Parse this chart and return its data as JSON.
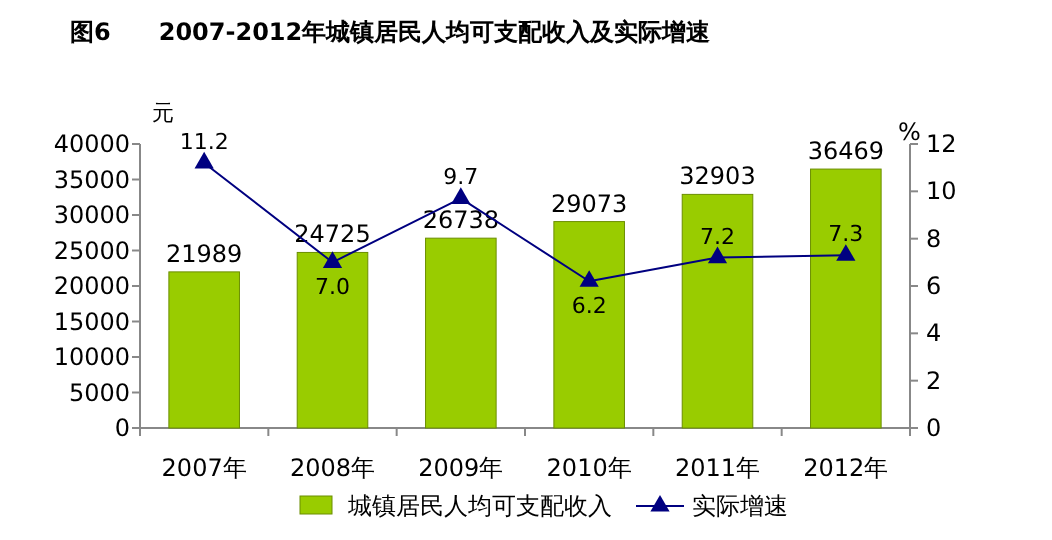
{
  "chart_data": {
    "type": "bar",
    "title": "图6　　2007-2012年城镇居民人均可支配收入及实际增速",
    "ylabel": "元",
    "y2label": "%",
    "categories": [
      "2007年",
      "2008年",
      "2009年",
      "2010年",
      "2011年",
      "2012年"
    ],
    "series": [
      {
        "name": "城镇居民人均可支配收入",
        "color": "#99cc00",
        "values": [
          21989,
          24725,
          26738,
          29073,
          32903,
          36469
        ]
      },
      {
        "name": "实际增速",
        "type": "line",
        "axis": "y2",
        "color": "#000080",
        "marker": "triangle",
        "values": [
          11.2,
          7.0,
          9.7,
          6.2,
          7.2,
          7.3
        ],
        "value_labels": [
          "11.2",
          "7.0",
          "9.7",
          "6.2",
          "7.2",
          "7.3"
        ]
      }
    ],
    "data_labels": true,
    "ylim": [
      0,
      40000
    ],
    "yticks": [
      0,
      5000,
      10000,
      15000,
      20000,
      25000,
      30000,
      35000,
      40000
    ],
    "y2lim": [
      0,
      12
    ],
    "y2ticks": [
      0,
      2,
      4,
      6,
      8,
      10,
      12
    ],
    "grid": false,
    "legend": "bottom"
  }
}
